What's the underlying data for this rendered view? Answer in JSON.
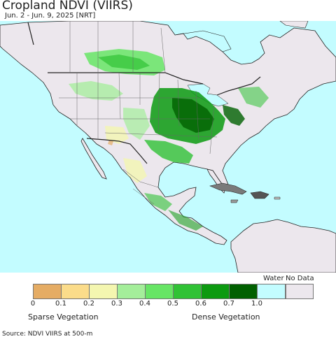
{
  "title": "Cropland NDVI (VIIRS)",
  "subtitle": "Jun. 2 - Jun. 9, 2025 [NRT]",
  "source": "Source: NDVI VIIRS at 500-m",
  "legend": {
    "scale_labels": [
      "0",
      "0.1",
      "0.2",
      "0.3",
      "0.4",
      "0.5",
      "0.6",
      "0.7",
      "1.0"
    ],
    "scale_colors": [
      "#e5ac64",
      "#fbdc8a",
      "#f4f6b0",
      "#a4ee9a",
      "#67e565",
      "#30c235",
      "#0c9a10",
      "#006000"
    ],
    "water_label": "Water",
    "water_color": "#c3fcff",
    "nodata_label": "No Data",
    "nodata_color": "#ece7ed",
    "sparse_label": "Sparse Vegetation",
    "dense_label": "Dense Vegetation"
  },
  "map": {
    "ocean_color": "#c3fcff",
    "land_color": "#ece7ed",
    "border_color": "#222222"
  }
}
